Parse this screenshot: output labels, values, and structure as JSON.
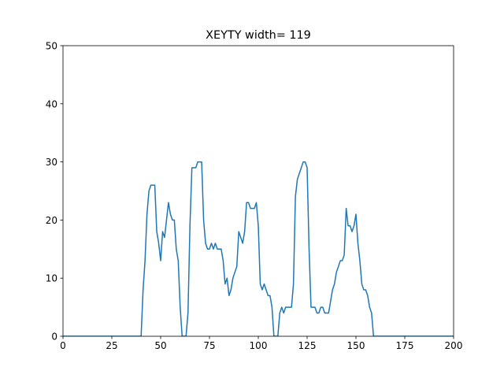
{
  "chart_data": {
    "type": "line",
    "title": "XEYTY width= 119",
    "xlabel": "",
    "ylabel": "",
    "xlim": [
      0,
      200
    ],
    "ylim": [
      0,
      50
    ],
    "xticks": [
      0,
      25,
      50,
      75,
      100,
      125,
      150,
      175,
      200
    ],
    "yticks": [
      0,
      10,
      20,
      30,
      40,
      50
    ],
    "grid": false,
    "colors": {
      "line": "#1f77b4",
      "axes": "#000000",
      "background": "#ffffff"
    },
    "series": [
      {
        "x": [
          0,
          40,
          41,
          42,
          43,
          44,
          45,
          46,
          47,
          48,
          49,
          50,
          51,
          52,
          53,
          54,
          55,
          56,
          57,
          58,
          59,
          60,
          61,
          62,
          63,
          64,
          65,
          66,
          67,
          68,
          69,
          70,
          71,
          72,
          73,
          74,
          75,
          76,
          77,
          78,
          79,
          80,
          81,
          82,
          83,
          84,
          85,
          86,
          87,
          88,
          89,
          90,
          91,
          92,
          93,
          94,
          95,
          96,
          97,
          98,
          99,
          100,
          101,
          102,
          103,
          104,
          105,
          106,
          107,
          108,
          109,
          110,
          111,
          112,
          113,
          114,
          115,
          116,
          117,
          118,
          119,
          120,
          121,
          122,
          123,
          124,
          125,
          126,
          127,
          128,
          129,
          130,
          131,
          132,
          133,
          134,
          135,
          136,
          137,
          138,
          139,
          140,
          141,
          142,
          143,
          144,
          145,
          146,
          147,
          148,
          149,
          150,
          151,
          152,
          153,
          154,
          155,
          156,
          157,
          158,
          159,
          160,
          200
        ],
        "y": [
          0,
          0,
          8,
          13,
          21,
          25,
          26,
          26,
          26,
          18,
          16,
          13,
          18,
          17,
          20,
          23,
          21,
          20,
          20,
          15,
          13,
          5,
          0,
          0,
          0,
          4,
          19,
          29,
          29,
          29,
          30,
          30,
          30,
          20,
          16,
          15,
          15,
          16,
          15,
          16,
          15,
          15,
          15,
          13,
          9,
          10,
          7,
          8,
          10,
          11,
          12,
          18,
          17,
          16,
          18,
          23,
          23,
          22,
          22,
          22,
          23,
          19,
          9,
          8,
          9,
          8,
          7,
          7,
          5,
          0,
          0,
          0,
          4,
          5,
          4,
          5,
          5,
          5,
          5,
          9,
          24,
          27,
          28,
          29,
          30,
          30,
          29,
          15,
          5,
          5,
          5,
          4,
          4,
          5,
          5,
          4,
          4,
          4,
          6,
          8,
          9,
          11,
          12,
          13,
          13,
          14,
          22,
          19,
          19,
          18,
          19,
          21,
          16,
          13,
          9,
          8,
          8,
          7,
          5,
          4,
          0,
          0,
          0
        ]
      }
    ]
  }
}
